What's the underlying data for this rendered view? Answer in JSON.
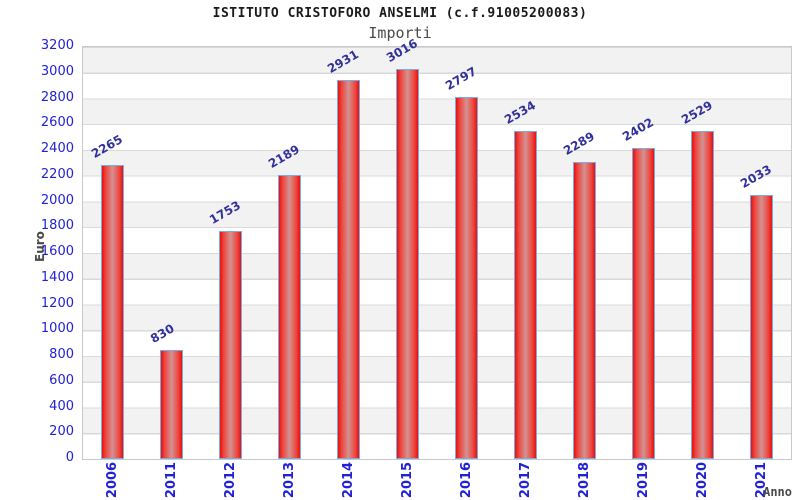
{
  "chart_data": {
    "type": "bar",
    "title": "ISTITUTO CRISTOFORO ANSELMI (c.f.91005200083)",
    "subtitle": "Importi",
    "xlabel": "Anno",
    "ylabel": "Euro",
    "categories": [
      "2006",
      "2011",
      "2012",
      "2013",
      "2014",
      "2015",
      "2016",
      "2017",
      "2018",
      "2019",
      "2020",
      "2021"
    ],
    "values": [
      2265,
      830,
      1753,
      2189,
      2931,
      3016,
      2797,
      2534,
      2289,
      2402,
      2529,
      2033
    ],
    "ylim": [
      0,
      3200
    ],
    "ytick_step": 200,
    "grid": "horizontal-bands-alternating",
    "legend": "none",
    "colors": {
      "bar_fill_edge": "#e81010",
      "bar_fill_center": "#d29292",
      "bar_border": "#79ace4",
      "axis_tick_label": "#2121d8",
      "value_label": "#31319c",
      "axis_title": "#4a4a4a",
      "band_gray": "#f2f2f2",
      "band_white": "#ffffff",
      "grid_line": "#d9d9d9",
      "plot_border": "#c9c9c9",
      "title_color": "#1a1a1a",
      "subtitle_color": "#4a4a4a"
    }
  }
}
